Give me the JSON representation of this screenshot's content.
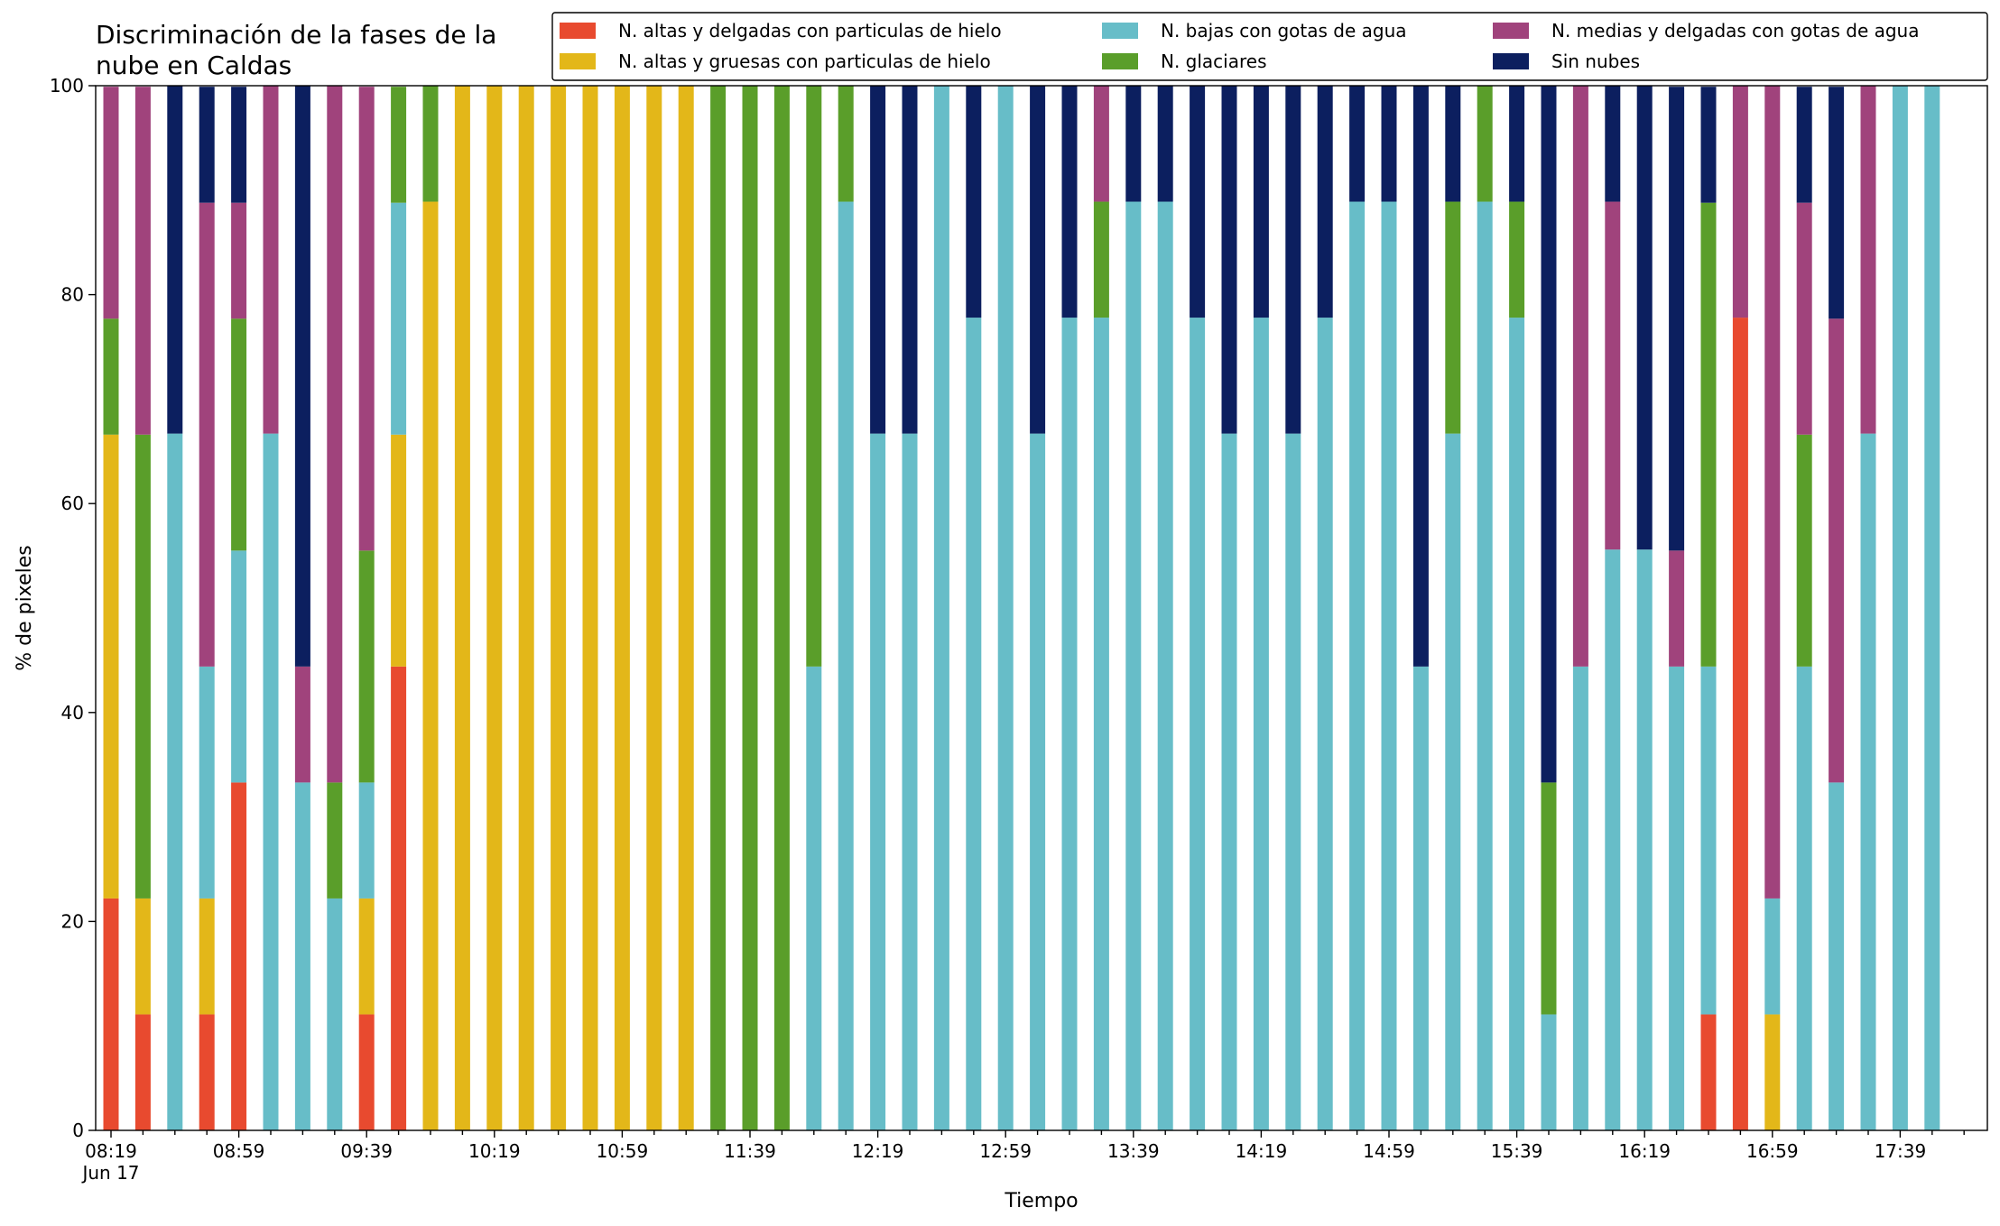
{
  "chart_data": {
    "type": "stacked_bar",
    "title": [
      "Discriminación de la fases de la",
      "nube en Caldas"
    ],
    "x_label": "Tiempo",
    "y_label": "% de pixeles",
    "x_sublabel": "Jun 17",
    "categories": [
      "08:19",
      null,
      null,
      null,
      "08:59",
      null,
      null,
      null,
      "09:39",
      null,
      null,
      null,
      "10:19",
      null,
      null,
      null,
      "10:59",
      null,
      null,
      null,
      "11:39",
      null,
      null,
      null,
      "12:19",
      null,
      null,
      null,
      "12:59",
      null,
      null,
      null,
      "13:39",
      null,
      null,
      null,
      "14:19",
      null,
      null,
      null,
      "14:59",
      null,
      null,
      null,
      "15:39",
      null,
      null,
      null,
      "16:19",
      null,
      null,
      null,
      "16:59",
      null,
      null,
      null,
      "17:39",
      null
    ],
    "ylim": [
      0,
      100
    ],
    "yticks": [
      0,
      20,
      40,
      60,
      80,
      100
    ],
    "legend": "upper right",
    "series": [
      {
        "name": "N. altas y delgadas con particulas de hielo",
        "color": "#e84a2f",
        "values": [
          22.2,
          11.1,
          0,
          11.1,
          33.3,
          0,
          0,
          0,
          11.1,
          44.4,
          0,
          0,
          0,
          0,
          0,
          0,
          0,
          0,
          0,
          0,
          0,
          0,
          0,
          0,
          0,
          0,
          0,
          0,
          0,
          0,
          0,
          0,
          0,
          0,
          0,
          0,
          0,
          0,
          0,
          0,
          0,
          0,
          0,
          0,
          0,
          0,
          0,
          0,
          0,
          0,
          11.1,
          77.8,
          0,
          0,
          0,
          0,
          0,
          0
        ]
      },
      {
        "name": "N. altas y gruesas con particulas de hielo",
        "color": "#e3b719",
        "values": [
          44.4,
          11.1,
          0,
          11.1,
          0,
          0,
          0,
          0,
          11.1,
          22.2,
          88.9,
          100,
          100,
          100,
          100,
          100,
          100,
          100,
          100,
          0,
          0,
          0,
          0,
          0,
          0,
          0,
          0,
          0,
          0,
          0,
          0,
          0,
          0,
          0,
          0,
          0,
          0,
          0,
          0,
          0,
          0,
          0,
          0,
          0,
          0,
          0,
          0,
          0,
          0,
          0,
          0,
          0,
          11.1,
          0,
          0,
          0,
          0,
          0
        ]
      },
      {
        "name": "N. bajas con gotas de agua",
        "color": "#67bdc8",
        "values": [
          0,
          0,
          66.7,
          22.2,
          22.2,
          66.7,
          33.3,
          22.2,
          11.1,
          22.2,
          0,
          0,
          0,
          0,
          0,
          0,
          0,
          0,
          0,
          0,
          0,
          0,
          44.4,
          88.9,
          66.7,
          66.7,
          100,
          77.8,
          100,
          66.7,
          77.8,
          77.8,
          88.9,
          88.9,
          77.8,
          66.7,
          77.8,
          66.7,
          77.8,
          88.9,
          88.9,
          44.4,
          66.7,
          88.9,
          77.8,
          11.1,
          44.4,
          55.6,
          55.6,
          44.4,
          33.3,
          0,
          11.1,
          44.4,
          33.3,
          66.7,
          100,
          100
        ]
      },
      {
        "name": "N. glaciares",
        "color": "#5a9e2a",
        "values": [
          11.1,
          44.4,
          0,
          0,
          22.2,
          0,
          0,
          11.1,
          22.2,
          11.1,
          11.1,
          0,
          0,
          0,
          0,
          0,
          0,
          0,
          0,
          100,
          100,
          100,
          55.6,
          11.1,
          0,
          0,
          0,
          0,
          0,
          0,
          0,
          11.1,
          0,
          0,
          0,
          0,
          0,
          0,
          0,
          0,
          0,
          0,
          22.2,
          11.1,
          11.1,
          22.2,
          0,
          0,
          0,
          0,
          44.4,
          0,
          0,
          22.2,
          0,
          0,
          0,
          0
        ]
      },
      {
        "name": "N. medias y delgadas con gotas de agua",
        "color": "#a0437c",
        "values": [
          22.2,
          33.3,
          0,
          44.4,
          11.1,
          33.3,
          11.1,
          66.7,
          44.4,
          0,
          0,
          0,
          0,
          0,
          0,
          0,
          0,
          0,
          0,
          0,
          0,
          0,
          0,
          0,
          0,
          0,
          0,
          0,
          0,
          0,
          0,
          11.1,
          0,
          0,
          0,
          0,
          0,
          0,
          0,
          0,
          0,
          0,
          0,
          0,
          0,
          0,
          55.6,
          33.3,
          0,
          11.1,
          0,
          22.2,
          77.8,
          22.2,
          44.4,
          33.3,
          0,
          0
        ]
      },
      {
        "name": "Sin nubes",
        "color": "#0c1f5f",
        "values": [
          0,
          0,
          33.3,
          11.1,
          11.1,
          0,
          55.6,
          0,
          0,
          0,
          0,
          0,
          0,
          0,
          0,
          0,
          0,
          0,
          0,
          0,
          0,
          0,
          0,
          0,
          33.3,
          33.3,
          0,
          22.2,
          0,
          33.3,
          22.2,
          0,
          11.1,
          11.1,
          22.2,
          33.3,
          22.2,
          33.3,
          22.2,
          11.1,
          11.1,
          55.6,
          11.1,
          0,
          11.1,
          66.7,
          0,
          11.1,
          44.4,
          44.4,
          11.1,
          0,
          0,
          11.1,
          22.2,
          0,
          0,
          0
        ]
      }
    ]
  }
}
